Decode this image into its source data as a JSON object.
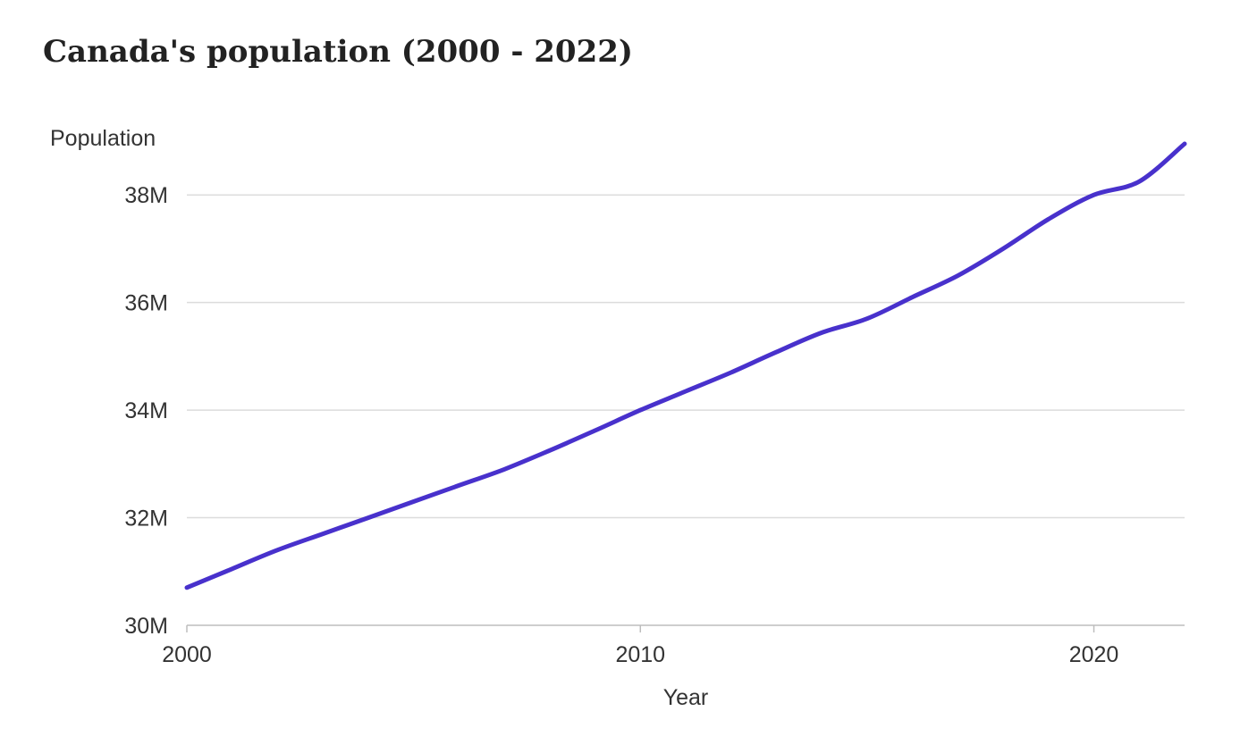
{
  "chart_data": {
    "type": "line",
    "title": "Canada's population (2000 - 2022)",
    "xlabel": "Year",
    "ylabel": "Population",
    "xlim": [
      2000,
      2022
    ],
    "ylim": [
      30000000,
      39000000
    ],
    "x_ticks": [
      2000,
      2010,
      2020
    ],
    "x_tick_labels": [
      "2000",
      "2010",
      "2020"
    ],
    "y_ticks": [
      30000000,
      32000000,
      34000000,
      36000000,
      38000000
    ],
    "y_tick_labels": [
      "30M",
      "32M",
      "34M",
      "36M",
      "38M"
    ],
    "grid": true,
    "x": [
      2000,
      2001,
      2002,
      2003,
      2004,
      2005,
      2006,
      2007,
      2008,
      2009,
      2010,
      2011,
      2012,
      2013,
      2014,
      2015,
      2016,
      2017,
      2018,
      2019,
      2020,
      2021,
      2022
    ],
    "series": [
      {
        "values": [
          30700000,
          31050000,
          31400000,
          31700000,
          32000000,
          32300000,
          32600000,
          32900000,
          33250000,
          33620000,
          34000000,
          34350000,
          34700000,
          35080000,
          35440000,
          35700000,
          36100000,
          36500000,
          37000000,
          37550000,
          38000000,
          38250000,
          38950000
        ]
      }
    ],
    "line_color": "#4831cc"
  }
}
